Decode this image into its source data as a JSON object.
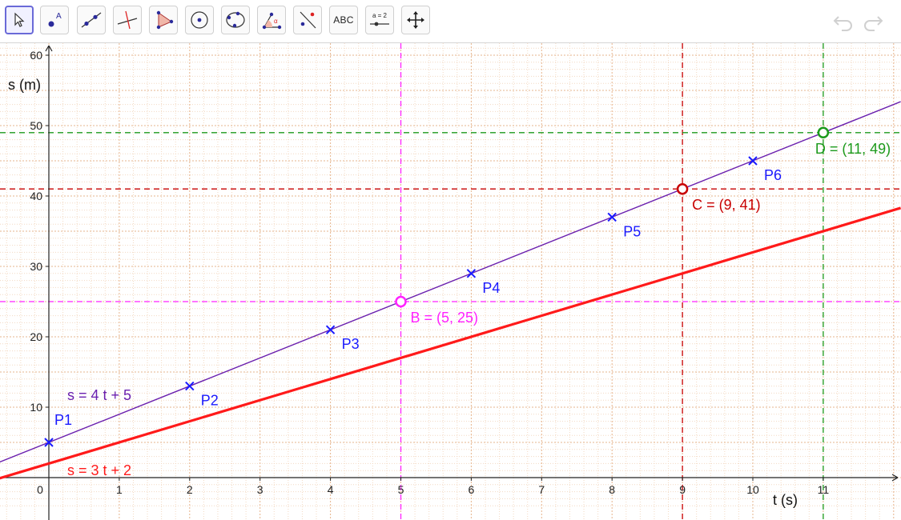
{
  "toolbar": {
    "tools": [
      {
        "name": "move-tool-button",
        "icon": "cursor-arrow-icon",
        "selected": true
      },
      {
        "name": "point-tool-button",
        "icon": "point-a-icon",
        "label": "A"
      },
      {
        "name": "line-tool-button",
        "icon": "line-through-points-icon"
      },
      {
        "name": "perpendicular-tool-button",
        "icon": "perpendicular-line-icon"
      },
      {
        "name": "polygon-tool-button",
        "icon": "polygon-icon"
      },
      {
        "name": "circle-center-point-tool-button",
        "icon": "circle-center-icon"
      },
      {
        "name": "circle-three-points-tool-button",
        "icon": "circle-three-points-icon"
      },
      {
        "name": "angle-tool-button",
        "icon": "angle-alpha-icon",
        "label": "α"
      },
      {
        "name": "reflect-tool-button",
        "icon": "reflect-about-line-icon"
      },
      {
        "name": "text-tool-button",
        "icon": "text-abc-icon",
        "label": "ABC"
      },
      {
        "name": "slider-tool-button",
        "icon": "slider-icon",
        "label": "a = 2"
      },
      {
        "name": "move-graphics-view-button",
        "icon": "move-arrows-icon"
      }
    ],
    "undo_icon": "undo-icon",
    "redo_icon": "redo-icon"
  },
  "chart_data": {
    "type": "line",
    "xlabel": "t (s)",
    "ylabel": "s (m)",
    "xlim": [
      -0.7,
      12.1
    ],
    "ylim": [
      -4,
      62
    ],
    "x_ticks": [
      0,
      1,
      2,
      3,
      4,
      5,
      6,
      7,
      8,
      9,
      10,
      11
    ],
    "y_ticks": [
      10,
      20,
      30,
      40,
      50,
      60
    ],
    "grid": true,
    "lines": [
      {
        "label": "s = 4 t + 5",
        "slope": 4,
        "intercept": 5,
        "color": "#6a1fae"
      },
      {
        "label": "s = 3 t + 2",
        "slope": 3,
        "intercept": 2,
        "color": "#ff1a1a"
      }
    ],
    "data_points": [
      {
        "label": "P1",
        "x": 0,
        "y": 5
      },
      {
        "label": "P2",
        "x": 2,
        "y": 13
      },
      {
        "label": "P3",
        "x": 4,
        "y": 21
      },
      {
        "label": "P4",
        "x": 6,
        "y": 29
      },
      {
        "label": "P5",
        "x": 8,
        "y": 37
      },
      {
        "label": "P6",
        "x": 10,
        "y": 45
      }
    ],
    "marked_points": [
      {
        "label": "B = (5, 25)",
        "x": 5,
        "y": 25,
        "color": "#ff22ff"
      },
      {
        "label": "C = (9, 41)",
        "x": 9,
        "y": 41,
        "color": "#c80000"
      },
      {
        "label": "D = (11, 49)",
        "x": 11,
        "y": 49,
        "color": "#1c9a1c"
      }
    ],
    "colors": {
      "data_points": "#1a1aff",
      "grid_major": "#e6b48c",
      "grid_minor": "#f3d9c2",
      "axis": "#222222"
    }
  }
}
